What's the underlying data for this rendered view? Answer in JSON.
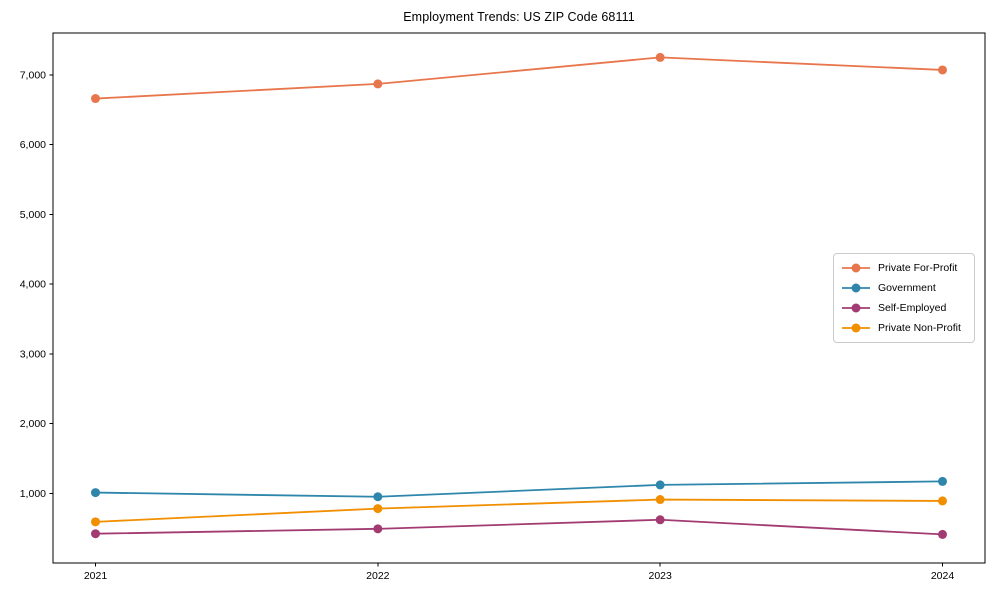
{
  "page": {
    "title": "Employment Trends: US ZIP Code 68111"
  },
  "chart_data": {
    "type": "line",
    "title": "Employment Trends: US ZIP Code 68111",
    "categories": [
      "2021",
      "2022",
      "2023",
      "2024"
    ],
    "series": [
      {
        "name": "Private For-Profit",
        "color": "#e8764c",
        "values": [
          6660,
          6870,
          7250,
          7070
        ]
      },
      {
        "name": "Government",
        "color": "#2e86ab",
        "values": [
          1010,
          950,
          1120,
          1170
        ]
      },
      {
        "name": "Self-Employed",
        "color": "#a23b72",
        "values": [
          420,
          490,
          620,
          410
        ]
      },
      {
        "name": "Private Non-Profit",
        "color": "#f18f01",
        "values": [
          590,
          780,
          910,
          890
        ]
      }
    ],
    "xlabel": "",
    "ylabel": "",
    "ylim": [
      0,
      7600
    ],
    "yticks": [
      1000,
      2000,
      3000,
      4000,
      5000,
      6000,
      7000
    ],
    "grid": false,
    "legend_position": "center right",
    "marker": "circle",
    "axis_color": "#000000",
    "tick_label_color": "#000000"
  }
}
